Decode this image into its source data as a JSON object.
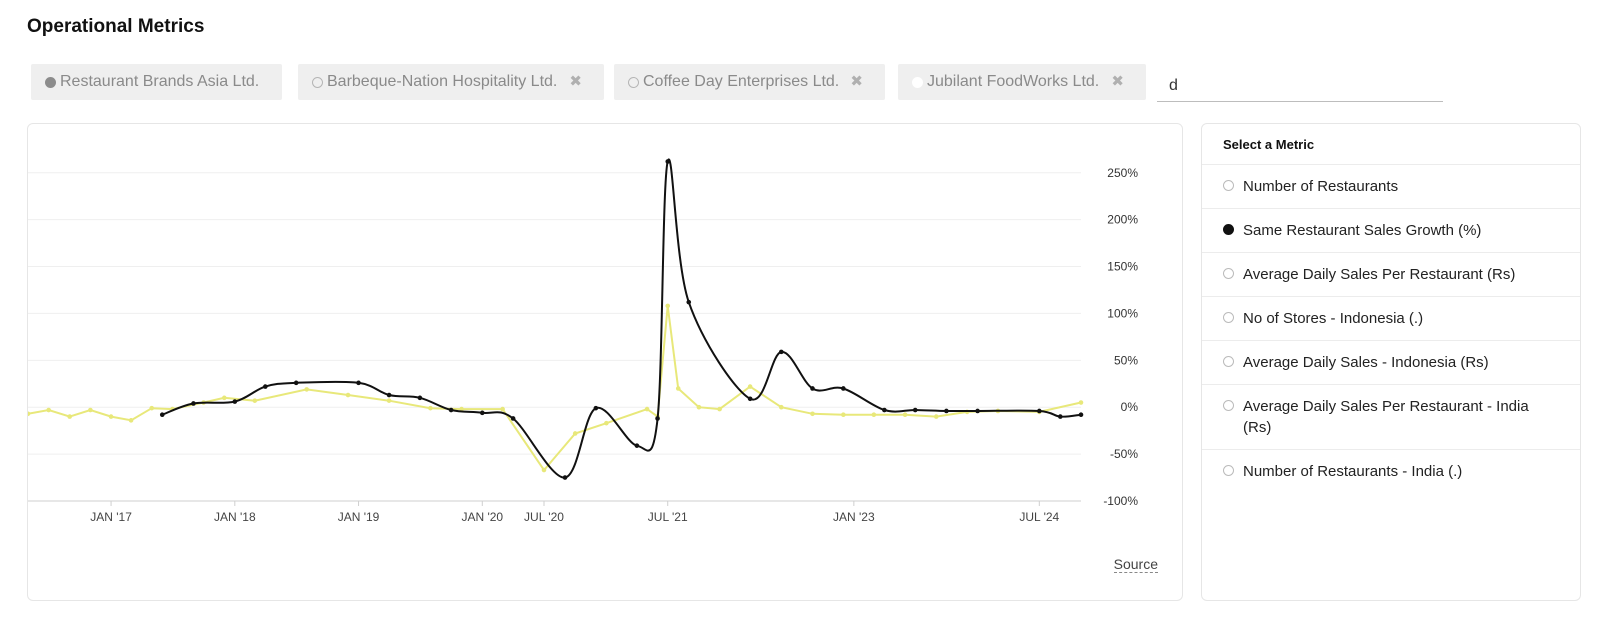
{
  "page_title": "Operational Metrics",
  "companies": [
    {
      "label": "Restaurant Brands Asia Ltd.",
      "status": "selected",
      "removable": false
    },
    {
      "label": "Barbeque-Nation Hospitality Ltd.",
      "status": "unselected",
      "removable": true
    },
    {
      "label": "Coffee Day Enterprises Ltd.",
      "status": "unselected",
      "removable": true
    },
    {
      "label": "Jubilant FoodWorks Ltd.",
      "status": "white",
      "removable": true
    }
  ],
  "search": {
    "value": "d"
  },
  "metrics_panel": {
    "title": "Select a Metric",
    "items": [
      {
        "label": "Number of Restaurants",
        "selected": false
      },
      {
        "label": "Same Restaurant Sales Growth (%)",
        "selected": true
      },
      {
        "label": "Average Daily Sales Per Restaurant (Rs)",
        "selected": false
      },
      {
        "label": "No of Stores - Indonesia (.)",
        "selected": false
      },
      {
        "label": "Average Daily Sales - Indonesia (Rs)",
        "selected": false
      },
      {
        "label": "Average Daily Sales Per Restaurant - India (Rs)",
        "selected": false
      },
      {
        "label": "Number of Restaurants - India (.)",
        "selected": false
      }
    ]
  },
  "source_label": "Source",
  "chart_data": {
    "type": "line",
    "ylim": [
      -100,
      270
    ],
    "y_ticks": [
      -100,
      -50,
      0,
      50,
      100,
      150,
      200,
      250
    ],
    "y_tick_labels": [
      "-100%",
      "-50%",
      "0%",
      "50%",
      "100%",
      "150%",
      "200%",
      "250%"
    ],
    "grid": true,
    "x_range": [
      "2016-05-01",
      "2024-11-01"
    ],
    "x_ticks": [
      {
        "date": "2017-01-01",
        "label": "JAN '17"
      },
      {
        "date": "2018-01-01",
        "label": "JAN '18"
      },
      {
        "date": "2019-01-01",
        "label": "JAN '19"
      },
      {
        "date": "2020-01-01",
        "label": "JAN '20"
      },
      {
        "date": "2020-07-01",
        "label": "JUL '20"
      },
      {
        "date": "2021-07-01",
        "label": "JUL '21"
      },
      {
        "date": "2023-01-01",
        "label": "JAN '23"
      },
      {
        "date": "2024-07-01",
        "label": "JUL '24"
      }
    ],
    "series": [
      {
        "color": "#111111",
        "smooth": true,
        "points": [
          [
            "2017-06-01",
            -8
          ],
          [
            "2017-09-01",
            4
          ],
          [
            "2018-01-01",
            6
          ],
          [
            "2018-04-01",
            22
          ],
          [
            "2018-07-01",
            26
          ],
          [
            "2019-01-01",
            26
          ],
          [
            "2019-04-01",
            13
          ],
          [
            "2019-07-01",
            10
          ],
          [
            "2019-10-01",
            -3
          ],
          [
            "2020-01-01",
            -6
          ],
          [
            "2020-04-01",
            -12
          ],
          [
            "2020-09-01",
            -75
          ],
          [
            "2020-12-01",
            -1
          ],
          [
            "2021-04-01",
            -41
          ],
          [
            "2021-06-01",
            -12
          ],
          [
            "2021-07-01",
            262
          ],
          [
            "2021-09-01",
            112
          ],
          [
            "2022-03-01",
            9
          ],
          [
            "2022-06-01",
            59
          ],
          [
            "2022-09-01",
            20
          ],
          [
            "2022-12-01",
            20
          ],
          [
            "2023-04-01",
            -3
          ],
          [
            "2023-07-01",
            -3
          ],
          [
            "2023-10-01",
            -4
          ],
          [
            "2024-01-01",
            -4
          ],
          [
            "2024-07-01",
            -4
          ],
          [
            "2024-09-01",
            -10
          ],
          [
            "2024-11-01",
            -8
          ]
        ]
      },
      {
        "color": "#e8e87a",
        "smooth": false,
        "points": [
          [
            "2016-05-01",
            -7
          ],
          [
            "2016-07-01",
            -3
          ],
          [
            "2016-09-01",
            -10
          ],
          [
            "2016-11-01",
            -3
          ],
          [
            "2017-01-01",
            -10
          ],
          [
            "2017-03-01",
            -14
          ],
          [
            "2017-05-01",
            -1
          ],
          [
            "2017-07-01",
            -2
          ],
          [
            "2017-10-01",
            5
          ],
          [
            "2017-12-01",
            10
          ],
          [
            "2018-03-01",
            7
          ],
          [
            "2018-08-01",
            19
          ],
          [
            "2018-12-01",
            13
          ],
          [
            "2019-04-01",
            7
          ],
          [
            "2019-08-01",
            -1
          ],
          [
            "2019-11-01",
            -2
          ],
          [
            "2020-03-01",
            -2
          ],
          [
            "2020-07-01",
            -67
          ],
          [
            "2020-10-01",
            -28
          ],
          [
            "2021-01-01",
            -17
          ],
          [
            "2021-05-01",
            -2
          ],
          [
            "2021-06-01",
            -10
          ],
          [
            "2021-07-01",
            108
          ],
          [
            "2021-08-01",
            20
          ],
          [
            "2021-10-01",
            0
          ],
          [
            "2021-12-01",
            -2
          ],
          [
            "2022-03-01",
            22
          ],
          [
            "2022-06-01",
            0
          ],
          [
            "2022-09-01",
            -7
          ],
          [
            "2022-12-01",
            -8
          ],
          [
            "2023-03-01",
            -8
          ],
          [
            "2023-06-01",
            -8
          ],
          [
            "2023-09-01",
            -10
          ],
          [
            "2023-12-01",
            -5
          ],
          [
            "2024-03-01",
            -4
          ],
          [
            "2024-07-01",
            -5
          ],
          [
            "2024-11-01",
            5
          ]
        ]
      }
    ]
  }
}
